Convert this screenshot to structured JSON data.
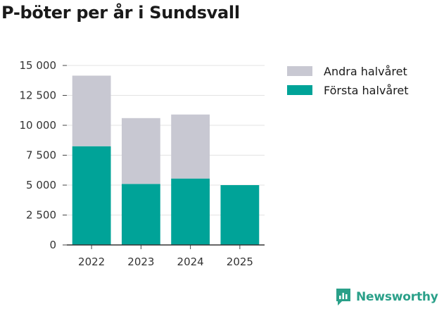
{
  "chart_data": {
    "type": "bar",
    "stacked": true,
    "title": "P-böter per år i Sundsvall",
    "categories": [
      "2022",
      "2023",
      "2024",
      "2025"
    ],
    "series": [
      {
        "name": "Första halvåret",
        "color": "#00a398",
        "values": [
          8250,
          5100,
          5550,
          5000
        ]
      },
      {
        "name": "Andra halvåret",
        "color": "#c8c8d2",
        "values": [
          5900,
          5500,
          5350,
          0
        ]
      }
    ],
    "yticks": [
      0,
      2500,
      5000,
      7500,
      10000,
      12500,
      15000
    ],
    "ytick_labels": [
      "0",
      "2 500",
      "5 000",
      "7 500",
      "10 000",
      "12 500",
      "15 000"
    ],
    "ylim": [
      0,
      15000
    ],
    "xlabel": "",
    "ylabel": "",
    "grid": true,
    "legend_position": "top-right",
    "legend_order": [
      "Andra halvåret",
      "Första halvåret"
    ]
  },
  "branding": {
    "logo_text": "Newsworthy",
    "logo_color": "#2aa089"
  }
}
